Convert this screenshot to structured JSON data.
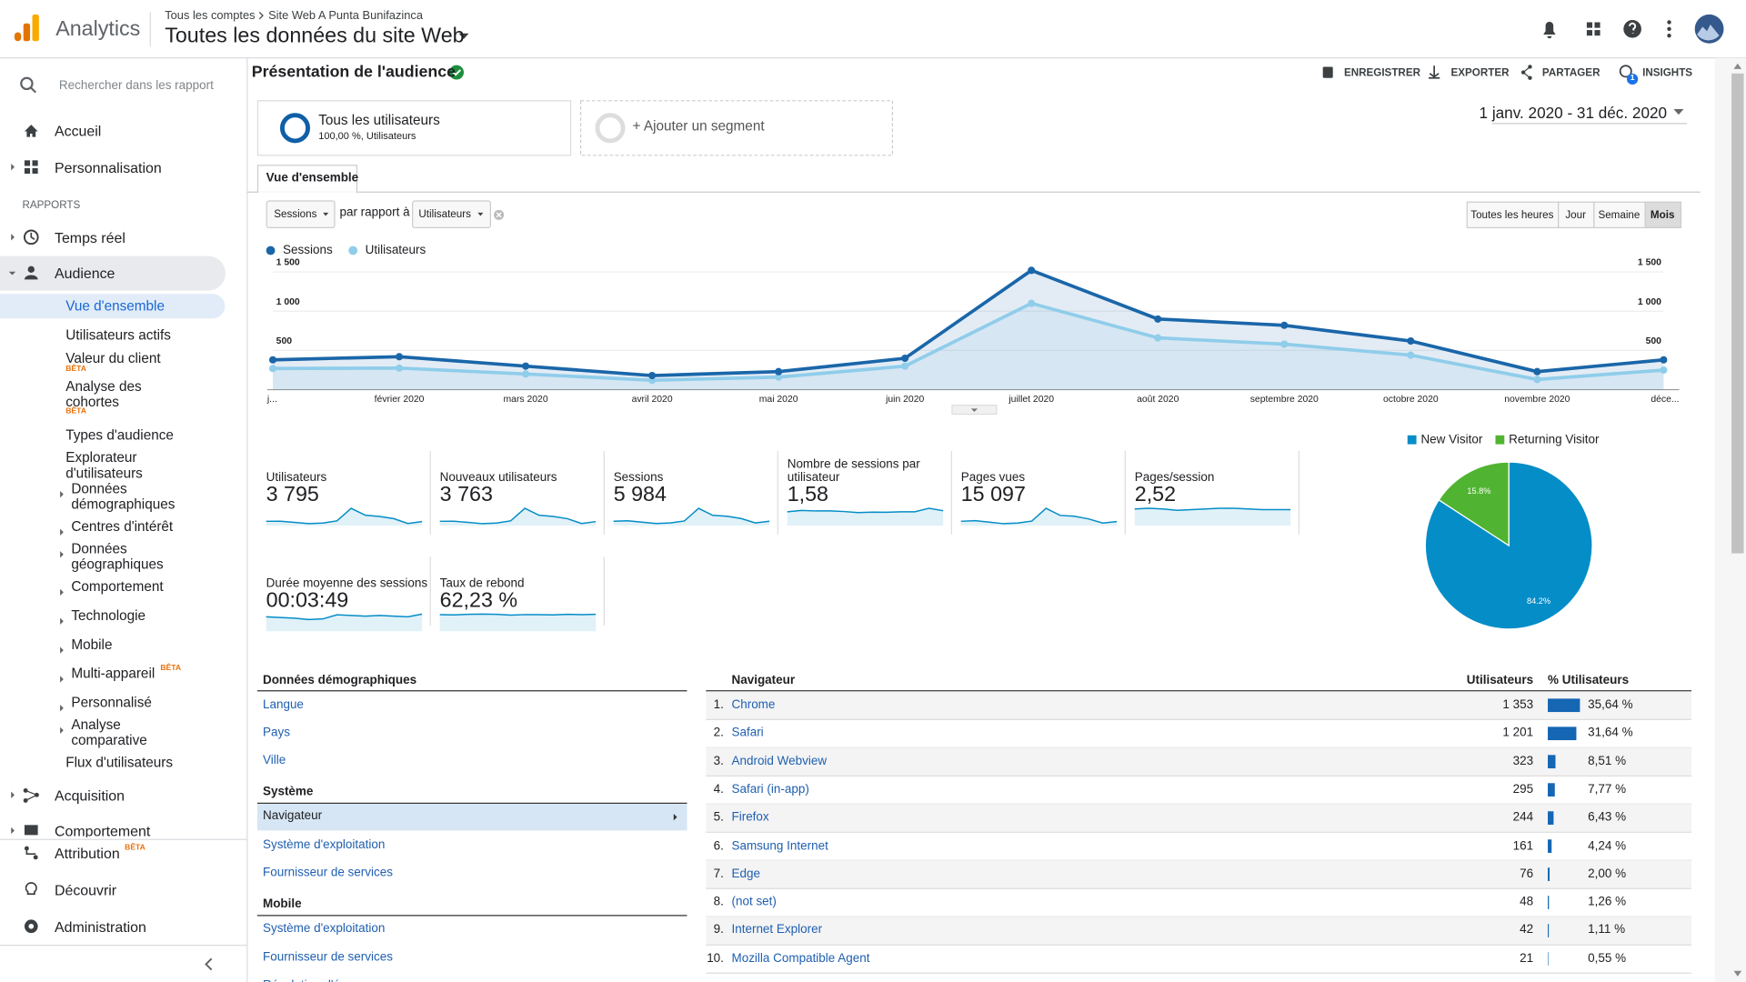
{
  "header": {
    "app_name": "Analytics",
    "breadcrumb": [
      "Tous les comptes",
      "Site Web A Punta Bunifazinca"
    ],
    "view": "Toutes les données du site Web"
  },
  "sidebar": {
    "search_placeholder": "Rechercher dans les rapport",
    "top": [
      "Accueil",
      "Personnalisation"
    ],
    "section": "RAPPORTS",
    "reports": [
      {
        "label": "Temps réel"
      },
      {
        "label": "Audience",
        "children": [
          {
            "label": "Vue d'ensemble"
          },
          {
            "label": "Utilisateurs actifs"
          },
          {
            "label": "Valeur du client",
            "badge": "BÊTA"
          },
          {
            "label": "Analyse des cohortes",
            "badge": "BÊTA"
          },
          {
            "label": "Types d'audience"
          },
          {
            "label": "Explorateur d'utilisateurs"
          },
          {
            "label": "Données démographiques"
          },
          {
            "label": "Centres d'intérêt"
          },
          {
            "label": "Données géographiques"
          },
          {
            "label": "Comportement"
          },
          {
            "label": "Technologie"
          },
          {
            "label": "Mobile"
          },
          {
            "label": "Multi-appareil",
            "badge": "BÊTA"
          },
          {
            "label": "Personnalisé"
          },
          {
            "label": "Analyse comparative"
          },
          {
            "label": "Flux d'utilisateurs"
          }
        ]
      },
      {
        "label": "Acquisition"
      },
      {
        "label": "Comportement"
      }
    ],
    "bottom": [
      {
        "label": "Attribution",
        "badge": "BÊTA"
      },
      {
        "label": "Découvrir"
      },
      {
        "label": "Administration"
      }
    ]
  },
  "report": {
    "title": "Présentation de l'audience",
    "actions": [
      "ENREGISTRER",
      "EXPORTER",
      "PARTAGER",
      "INSIGHTS"
    ],
    "insights_badge": 1,
    "segment": {
      "name": "Tous les utilisateurs",
      "detail": "100,00 %, Utilisateurs",
      "add": "+ Ajouter un segment"
    },
    "date_range": "1 janv. 2020 - 31 déc. 2020",
    "tab": "Vue d'ensemble",
    "controls": {
      "metric": "Sessions",
      "compare_text": "par rapport à",
      "compare_metric": "Utilisateurs",
      "granularity": [
        "Toutes les heures",
        "Jour",
        "Semaine",
        "Mois"
      ],
      "active_granularity": "Mois"
    }
  },
  "chart_data": [
    {
      "type": "line",
      "categories": [
        "j...",
        "février 2020",
        "mars 2020",
        "avril 2020",
        "mai 2020",
        "juin 2020",
        "juillet 2020",
        "août 2020",
        "septembre 2020",
        "octobre 2020",
        "novembre 2020",
        "déce..."
      ],
      "series": [
        {
          "name": "Sessions",
          "color": "#1a66a9",
          "values": [
            380,
            420,
            300,
            180,
            230,
            400,
            1520,
            900,
            820,
            620,
            230,
            380
          ]
        },
        {
          "name": "Utilisateurs",
          "color": "#8fcdea",
          "values": [
            270,
            275,
            200,
            120,
            160,
            300,
            1100,
            660,
            580,
            440,
            130,
            250
          ]
        }
      ],
      "ylim": [
        0,
        1560
      ],
      "yticks": [
        500,
        {
          "value": 1000,
          "label": "1 000"
        },
        {
          "value": 1500,
          "label": "1 500"
        }
      ],
      "grid": true
    },
    {
      "type": "pie",
      "categories": [
        "New Visitor",
        "Returning Visitor"
      ],
      "values": [
        84.2,
        15.8
      ],
      "value_labels": [
        "84.2%",
        "15.8%"
      ],
      "colors": [
        "#058dc7",
        "#50b432"
      ]
    }
  ],
  "metrics": [
    {
      "label": "Utilisateurs",
      "value": "3 795",
      "trend": [
        270,
        275,
        200,
        120,
        160,
        300,
        1100,
        660,
        580,
        440,
        130,
        250
      ]
    },
    {
      "label": "Nouveaux utilisateurs",
      "value": "3 763",
      "trend": [
        268,
        272,
        198,
        118,
        158,
        298,
        1095,
        655,
        575,
        436,
        128,
        248
      ]
    },
    {
      "label": "Sessions",
      "value": "5 984",
      "trend": [
        380,
        420,
        300,
        180,
        230,
        400,
        1520,
        900,
        820,
        620,
        230,
        380
      ]
    },
    {
      "label": "Nombre de sessions par utilisateur",
      "value": "1,58",
      "trend": [
        1.41,
        1.55,
        1.5,
        1.5,
        1.44,
        1.33,
        1.38,
        1.36,
        1.41,
        1.41,
        1.77,
        1.52
      ]
    },
    {
      "label": "Pages vues",
      "value": "15 097",
      "trend": [
        960,
        1100,
        760,
        420,
        560,
        1000,
        3900,
        2300,
        2100,
        1500,
        560,
        900
      ]
    },
    {
      "label": "Pages/session",
      "value": "2,52",
      "trend": [
        2.5,
        2.6,
        2.5,
        2.3,
        2.4,
        2.5,
        2.6,
        2.6,
        2.5,
        2.4,
        2.4,
        2.4
      ]
    },
    {
      "label": "Durée moyenne des sessions",
      "value": "00:03:49",
      "trend": [
        210,
        200,
        190,
        170,
        180,
        240,
        230,
        220,
        230,
        220,
        210,
        250
      ]
    },
    {
      "label": "Taux de rebond",
      "value": "62,23 %",
      "trend": [
        62,
        61,
        63,
        64,
        63,
        60,
        62,
        62,
        61,
        63,
        62,
        63
      ]
    }
  ],
  "dimensions": {
    "selected": "Navigateur",
    "sections": [
      {
        "title": "Données démographiques",
        "links": [
          "Langue",
          "Pays",
          "Ville"
        ]
      },
      {
        "title": "Système",
        "links": [
          "Navigateur",
          "Système d'exploitation",
          "Fournisseur de services"
        ]
      },
      {
        "title": "Mobile",
        "links": [
          "Système d'exploitation",
          "Fournisseur de services",
          "Résolution d'écran"
        ]
      }
    ]
  },
  "browser_table": {
    "columns": [
      "Navigateur",
      "Utilisateurs",
      "% Utilisateurs"
    ],
    "rows": [
      {
        "rank": "1.",
        "name": "Chrome",
        "users": "1 353",
        "share": 35.64,
        "share_label": "35,64 %"
      },
      {
        "rank": "2.",
        "name": "Safari",
        "users": "1 201",
        "share": 31.64,
        "share_label": "31,64 %"
      },
      {
        "rank": "3.",
        "name": "Android Webview",
        "users": "323",
        "share": 8.51,
        "share_label": "8,51 %"
      },
      {
        "rank": "4.",
        "name": "Safari (in-app)",
        "users": "295",
        "share": 7.77,
        "share_label": "7,77 %"
      },
      {
        "rank": "5.",
        "name": "Firefox",
        "users": "244",
        "share": 6.43,
        "share_label": "6,43 %"
      },
      {
        "rank": "6.",
        "name": "Samsung Internet",
        "users": "161",
        "share": 4.24,
        "share_label": "4,24 %"
      },
      {
        "rank": "7.",
        "name": "Edge",
        "users": "76",
        "share": 2.0,
        "share_label": "2,00 %"
      },
      {
        "rank": "8.",
        "name": "(not set)",
        "users": "48",
        "share": 1.26,
        "share_label": "1,26 %"
      },
      {
        "rank": "9.",
        "name": "Internet Explorer",
        "users": "42",
        "share": 1.11,
        "share_label": "1,11 %"
      },
      {
        "rank": "10.",
        "name": "Mozilla Compatible Agent",
        "users": "21",
        "share": 0.55,
        "share_label": "0,55 %"
      }
    ]
  }
}
